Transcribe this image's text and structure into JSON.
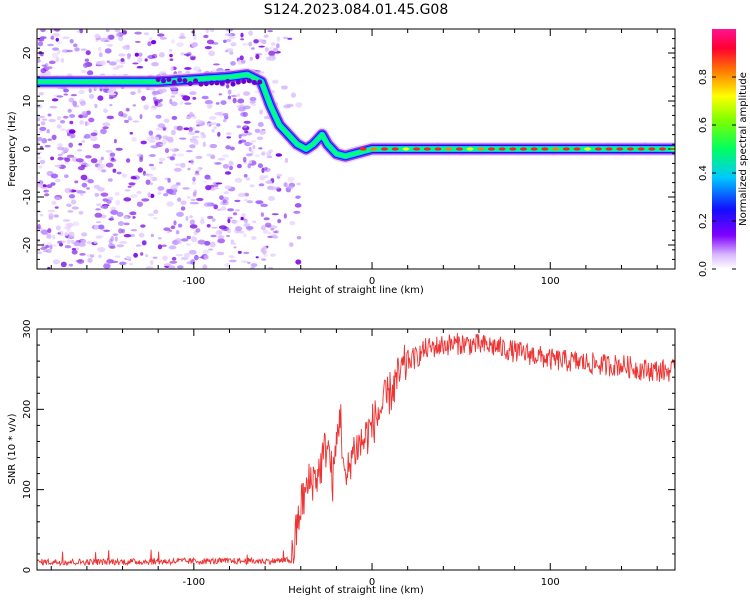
{
  "title": "S124.2023.084.01.45.G08",
  "colors": {
    "snr_line": "#ee3333",
    "axis": "#000000",
    "scatter": "#8a2be2"
  },
  "chart_data": [
    {
      "type": "heatmap",
      "name": "spectrogram",
      "xlabel": "Height of straight line (km)",
      "ylabel": "Frequency (Hz)",
      "xlim": [
        -188,
        170
      ],
      "ylim": [
        -25,
        25
      ],
      "xticks": [
        -100,
        0,
        100
      ],
      "yticks": [
        -20,
        -10,
        0,
        10,
        20
      ],
      "colorbar": {
        "label": "Normalized spectral amplitude",
        "range": [
          0,
          1
        ],
        "ticks": [
          0.0,
          0.2,
          0.4,
          0.6,
          0.8
        ],
        "colormap": "rainbow"
      },
      "ridge": {
        "x": [
          -188,
          -120,
          -80,
          -70,
          -62,
          -57,
          -52,
          -47,
          -42,
          -37,
          -33,
          -28,
          -25,
          -20,
          -15,
          -10,
          -5,
          0,
          20,
          60,
          100,
          140,
          170
        ],
        "y": [
          14,
          14,
          15,
          15.5,
          14,
          9,
          5,
          3,
          1,
          0,
          1,
          3,
          1,
          -1,
          -1.5,
          -1,
          -0.5,
          0,
          0,
          0,
          0,
          0,
          0
        ]
      },
      "noise_region_x": [
        -188,
        -52
      ]
    },
    {
      "type": "line",
      "name": "snr",
      "xlabel": "Height of straight line (km)",
      "ylabel": "SNR (10 * v/v)",
      "xlim": [
        -188,
        170
      ],
      "ylim": [
        0,
        300
      ],
      "xticks": [
        -100,
        0,
        100
      ],
      "yticks": [
        0,
        100,
        200,
        300
      ],
      "series": [
        {
          "x": [
            -188,
            -150,
            -100,
            -60,
            -45,
            -40,
            -35,
            -30,
            -25,
            -22,
            -18,
            -15,
            -12,
            -10,
            -5,
            0,
            5,
            10,
            15,
            20,
            25,
            30,
            40,
            50,
            60,
            70,
            80,
            90,
            100,
            110,
            120,
            130,
            140,
            150,
            160,
            170
          ],
          "y": [
            10,
            10,
            11,
            11,
            12,
            80,
            110,
            120,
            160,
            110,
            200,
            100,
            140,
            150,
            160,
            180,
            200,
            220,
            240,
            260,
            265,
            275,
            280,
            282,
            280,
            278,
            272,
            268,
            262,
            260,
            258,
            255,
            255,
            250,
            248,
            248
          ]
        }
      ]
    }
  ]
}
